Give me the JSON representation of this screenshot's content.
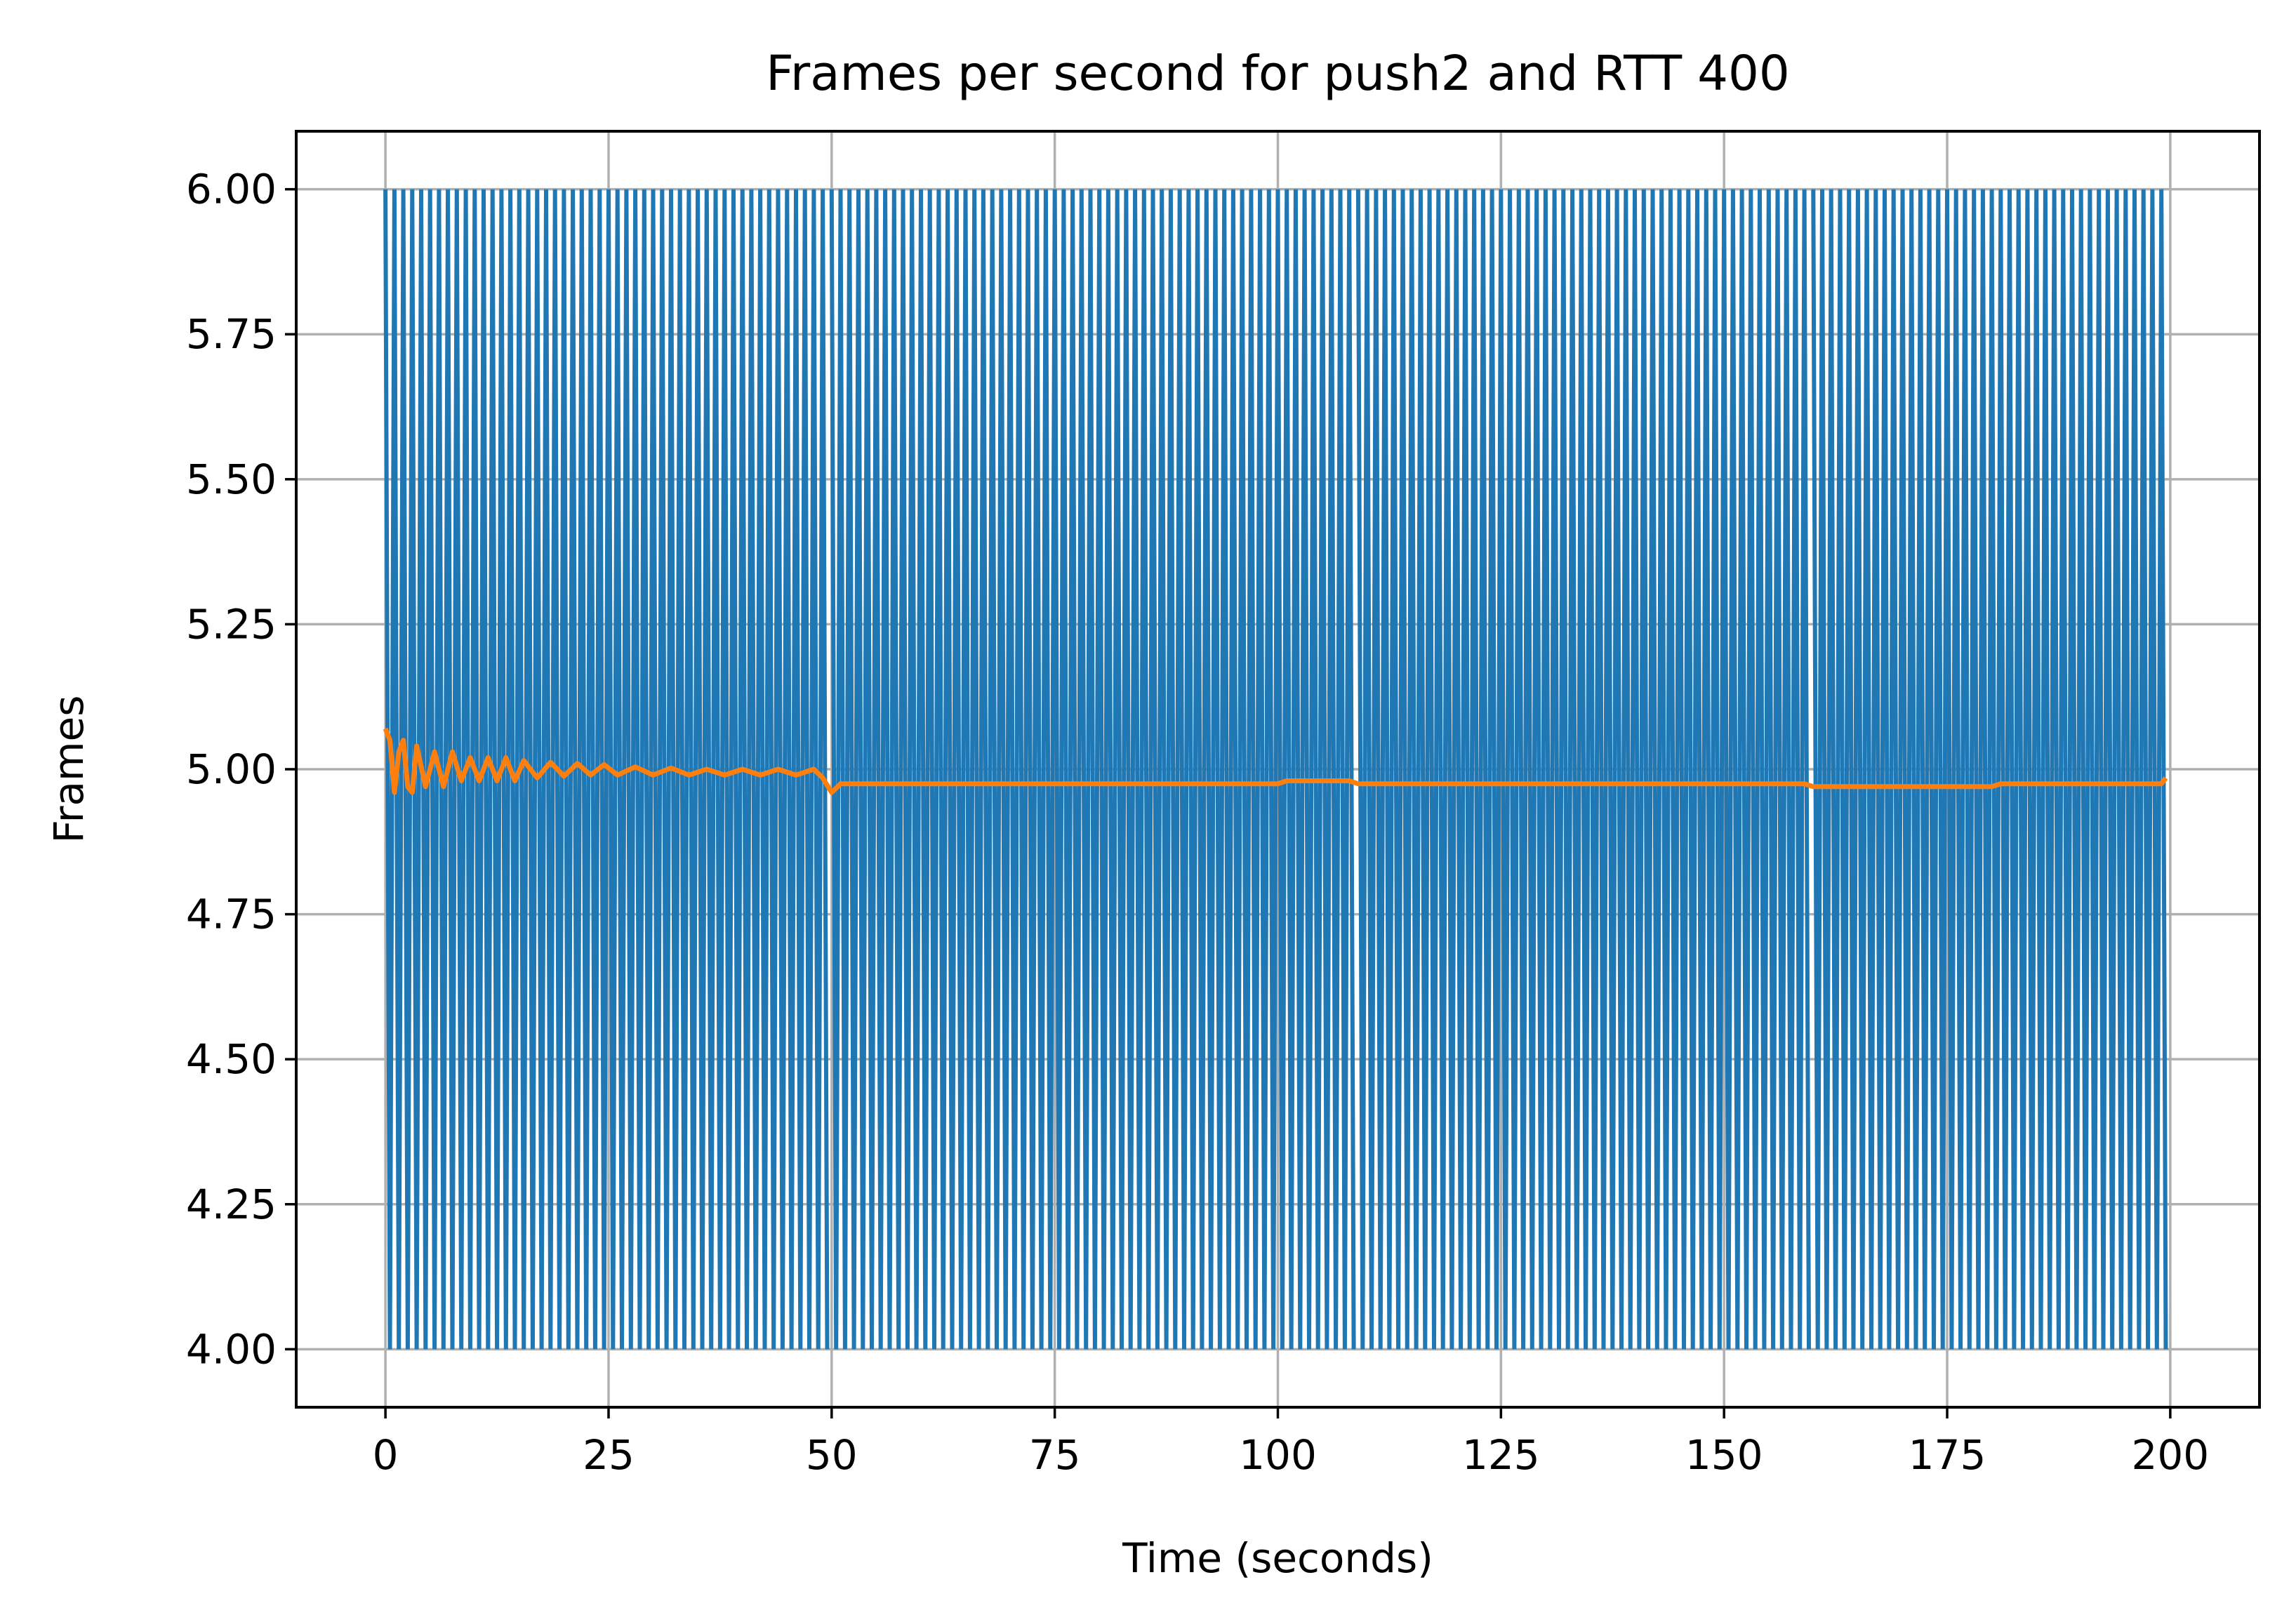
{
  "colors": {
    "background": "#ffffff",
    "series_frames": "#1f77b4",
    "series_average": "#ff7f0e",
    "grid": "#b0b0b0",
    "axis": "#000000"
  },
  "chart_data": {
    "type": "line",
    "title": "Frames per second for push2 and RTT 400",
    "xlabel": "Time (seconds)",
    "ylabel": "Frames",
    "xlim": [
      -10,
      210
    ],
    "ylim": [
      3.9,
      6.1
    ],
    "x_ticks": [
      0,
      25,
      50,
      75,
      100,
      125,
      150,
      175,
      200
    ],
    "x_tick_labels": [
      "0",
      "25",
      "50",
      "75",
      "100",
      "125",
      "150",
      "175",
      "200"
    ],
    "y_ticks": [
      4.0,
      4.25,
      4.5,
      4.75,
      5.0,
      5.25,
      5.5,
      5.75,
      6.0
    ],
    "y_tick_labels": [
      "4.00",
      "4.25",
      "4.50",
      "4.75",
      "5.00",
      "5.25",
      "5.50",
      "5.75",
      "6.00"
    ],
    "grid": true,
    "legend": "none",
    "series": [
      {
        "description": "per-second frame count, alternating between 6 and 4 frames",
        "color": "#1f77b4",
        "segments": [
          {
            "x_start": 0,
            "x_end": 49,
            "period": 1.0,
            "high": 6.0,
            "low": 4.0
          },
          {
            "x_start": 50,
            "x_end": 101,
            "period": 1.0,
            "high": 6.0,
            "low": 4.0
          },
          {
            "x_start": 101,
            "x_end": 108,
            "period": 1.0,
            "high": 6.0,
            "low": 4.0
          },
          {
            "x_start": 109,
            "x_end": 159,
            "period": 1.0,
            "high": 6.0,
            "low": 4.0
          },
          {
            "x_start": 160,
            "x_end": 199,
            "period": 1.0,
            "high": 6.0,
            "low": 4.0
          }
        ],
        "range": [
          4.0,
          6.0
        ]
      },
      {
        "description": "running average of frames per second",
        "color": "#ff7f0e",
        "points": [
          [
            0,
            5.07
          ],
          [
            0.5,
            5.05
          ],
          [
            1,
            4.96
          ],
          [
            1.5,
            5.03
          ],
          [
            2,
            5.05
          ],
          [
            2.5,
            4.97
          ],
          [
            3,
            4.96
          ],
          [
            3.5,
            5.04
          ],
          [
            4.5,
            4.97
          ],
          [
            5.5,
            5.03
          ],
          [
            6.5,
            4.97
          ],
          [
            7.5,
            5.03
          ],
          [
            8.5,
            4.98
          ],
          [
            9.5,
            5.02
          ],
          [
            10.5,
            4.98
          ],
          [
            11.5,
            5.02
          ],
          [
            12.5,
            4.98
          ],
          [
            13.5,
            5.02
          ],
          [
            14.5,
            4.98
          ],
          [
            15.5,
            5.015
          ],
          [
            17,
            4.985
          ],
          [
            18.5,
            5.012
          ],
          [
            20,
            4.988
          ],
          [
            21.5,
            5.01
          ],
          [
            23,
            4.99
          ],
          [
            24.5,
            5.008
          ],
          [
            26,
            4.99
          ],
          [
            28,
            5.004
          ],
          [
            30,
            4.99
          ],
          [
            32,
            5.002
          ],
          [
            34,
            4.99
          ],
          [
            36,
            5.0
          ],
          [
            38,
            4.99
          ],
          [
            40,
            5.0
          ],
          [
            42,
            4.99
          ],
          [
            44,
            5.0
          ],
          [
            46,
            4.99
          ],
          [
            48,
            5.0
          ],
          [
            49,
            4.985
          ],
          [
            50,
            4.96
          ],
          [
            51,
            4.975
          ],
          [
            53,
            4.975
          ],
          [
            55,
            4.975
          ],
          [
            60,
            4.975
          ],
          [
            70,
            4.975
          ],
          [
            80,
            4.975
          ],
          [
            90,
            4.975
          ],
          [
            100,
            4.975
          ],
          [
            101,
            4.98
          ],
          [
            108,
            4.98
          ],
          [
            109,
            4.975
          ],
          [
            120,
            4.975
          ],
          [
            130,
            4.975
          ],
          [
            140,
            4.975
          ],
          [
            150,
            4.975
          ],
          [
            159,
            4.975
          ],
          [
            160,
            4.97
          ],
          [
            170,
            4.97
          ],
          [
            180,
            4.97
          ],
          [
            181,
            4.975
          ],
          [
            190,
            4.975
          ],
          [
            199,
            4.975
          ],
          [
            199.5,
            4.985
          ]
        ]
      }
    ]
  }
}
